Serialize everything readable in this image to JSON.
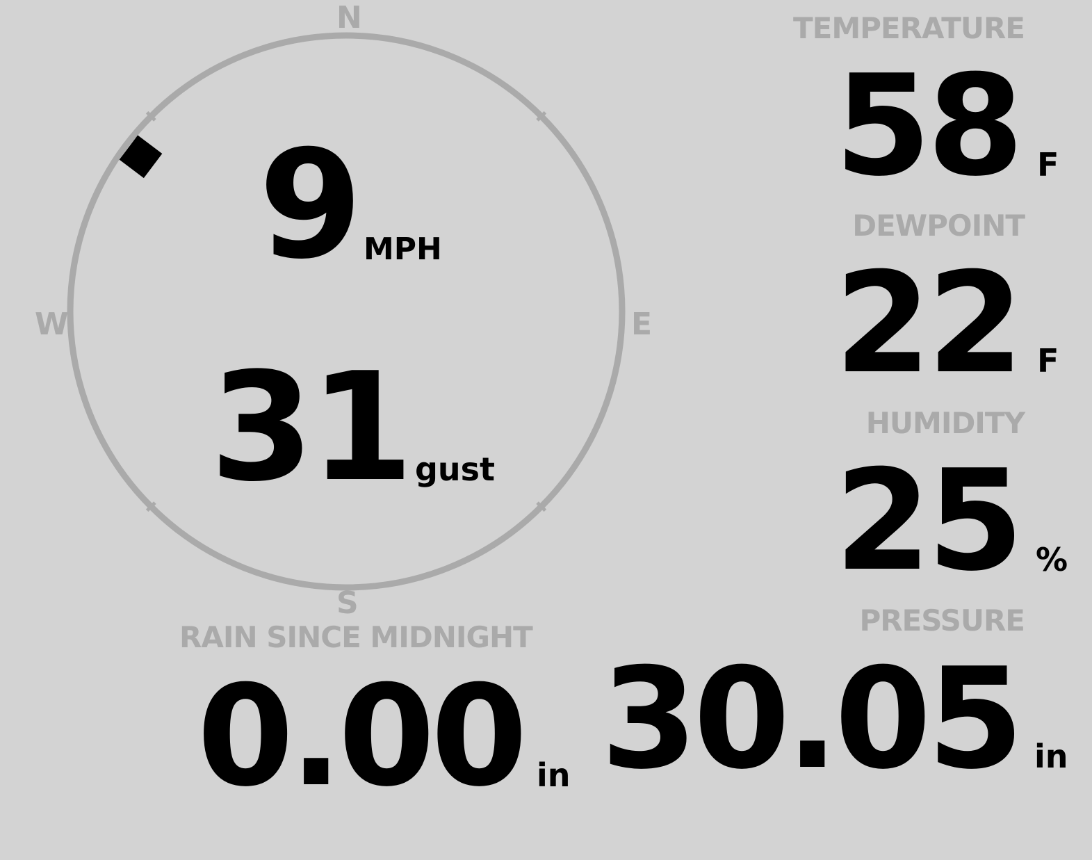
{
  "wind": {
    "speed": "9",
    "speed_unit": "MPH",
    "gust": "31",
    "gust_label": "gust",
    "direction_degrees": 307,
    "cardinals": {
      "n": "N",
      "e": "E",
      "s": "S",
      "w": "W"
    },
    "ring_color": "#aaaaaa"
  },
  "temperature": {
    "label": "TEMPERATURE",
    "value": "58",
    "unit": "F"
  },
  "dewpoint": {
    "label": "DEWPOINT",
    "value": "22",
    "unit": "F"
  },
  "humidity": {
    "label": "HUMIDITY",
    "value": "25",
    "unit": "%"
  },
  "rain": {
    "label": "RAIN SINCE MIDNIGHT",
    "value": "0.00",
    "unit": "in"
  },
  "pressure": {
    "label": "PRESSURE",
    "value": "30.05",
    "unit": "in"
  }
}
